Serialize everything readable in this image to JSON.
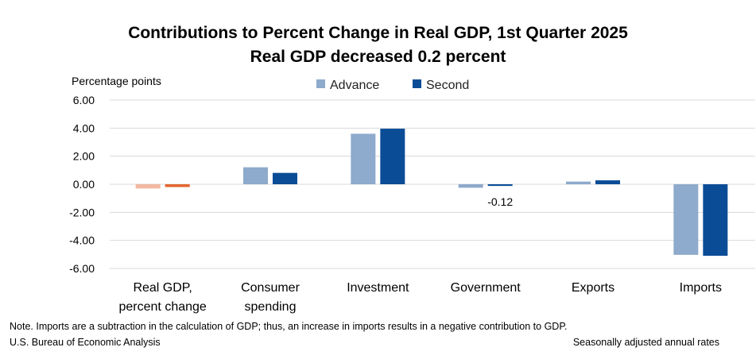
{
  "chart_data": {
    "type": "bar",
    "title": "Contributions to Percent Change in Real GDP, 1st Quarter 2025",
    "subtitle": "Real GDP decreased 0.2 percent",
    "ylabel": "Percentage points",
    "ylim": [
      -6,
      6
    ],
    "yticks": [
      "6.00",
      "4.00",
      "2.00",
      "0.00",
      "-2.00",
      "-4.00",
      "-6.00"
    ],
    "ytick_values": [
      6,
      4,
      2,
      0,
      -2,
      -4,
      -6
    ],
    "categories": [
      [
        "Real GDP,",
        "percent change"
      ],
      [
        "Consumer",
        "spending"
      ],
      [
        "Investment"
      ],
      [
        "Government"
      ],
      [
        "Exports"
      ],
      [
        "Imports"
      ]
    ],
    "series": [
      {
        "name": "Advance",
        "values": [
          -0.3,
          1.21,
          3.6,
          -0.25,
          0.19,
          -5.03
        ]
      },
      {
        "name": "Second",
        "values": [
          -0.2,
          0.81,
          3.96,
          -0.12,
          0.28,
          -5.1
        ]
      }
    ],
    "colors": {
      "Advance": "#8eaacc",
      "Second": "#0b4c96",
      "gdp_advance": "#f2b8a0",
      "gdp_second": "#e2662e",
      "gridline": "#d9d9d9"
    },
    "data_labels": [
      {
        "category_index": 3,
        "series": "Second",
        "text": "-0.12"
      }
    ],
    "legend_position": "top-center",
    "grid": true
  },
  "footer": {
    "note": "Note. Imports are a subtraction in the calculation of GDP; thus, an increase in imports results in a negative contribution to GDP.",
    "source": "U.S. Bureau of Economic Analysis",
    "rates": "Seasonally adjusted annual rates"
  }
}
